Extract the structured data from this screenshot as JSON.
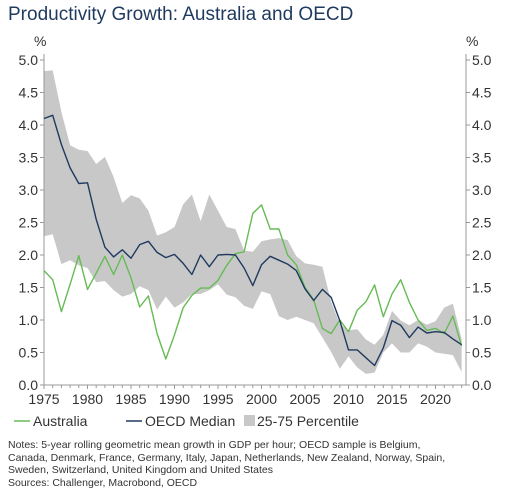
{
  "title": "Productivity Growth: Australia and OECD",
  "chart_data": {
    "type": "line",
    "title": "Productivity Growth: Australia and OECD",
    "ylabel_left": "%",
    "ylabel_right": "%",
    "xlim": [
      1975,
      2023.5
    ],
    "ylim": [
      0,
      5
    ],
    "x_ticks": [
      1975,
      1980,
      1985,
      1990,
      1995,
      2000,
      2005,
      2010,
      2015,
      2020
    ],
    "y_ticks": [
      0.0,
      0.5,
      1.0,
      1.5,
      2.0,
      2.5,
      3.0,
      3.5,
      4.0,
      4.5,
      5.0
    ],
    "y_tick_labels": [
      "0.0",
      "0.5",
      "1.0",
      "1.5",
      "2.0",
      "2.5",
      "3.0",
      "3.5",
      "4.0",
      "4.5",
      "5.0"
    ],
    "grid": false,
    "legend_position": "bottom",
    "x": [
      1975,
      1976,
      1977,
      1978,
      1979,
      1980,
      1981,
      1982,
      1983,
      1984,
      1985,
      1986,
      1987,
      1988,
      1989,
      1990,
      1991,
      1992,
      1993,
      1994,
      1995,
      1996,
      1997,
      1998,
      1999,
      2000,
      2001,
      2002,
      2003,
      2004,
      2005,
      2006,
      2007,
      2008,
      2009,
      2010,
      2011,
      2012,
      2013,
      2014,
      2015,
      2016,
      2017,
      2018,
      2019,
      2020,
      2021,
      2022,
      2023
    ],
    "series": [
      {
        "name": "Australia",
        "style": "line",
        "color": "#66bb55",
        "values": [
          1.76,
          1.62,
          1.13,
          1.55,
          1.99,
          1.47,
          1.72,
          1.98,
          1.7,
          2.0,
          1.65,
          1.2,
          1.37,
          0.79,
          0.4,
          0.77,
          1.19,
          1.38,
          1.49,
          1.49,
          1.61,
          1.84,
          2.02,
          2.05,
          2.64,
          2.77,
          2.4,
          2.4,
          2.0,
          1.85,
          1.5,
          1.31,
          0.87,
          0.79,
          1.0,
          0.82,
          1.15,
          1.28,
          1.54,
          1.05,
          1.4,
          1.62,
          1.27,
          1.0,
          0.84,
          0.87,
          0.79,
          1.06,
          0.6
        ]
      },
      {
        "name": "OECD Median",
        "style": "line",
        "color": "#1f3a5f",
        "values": [
          4.1,
          4.15,
          3.7,
          3.34,
          3.1,
          3.11,
          2.55,
          2.12,
          1.97,
          2.08,
          1.95,
          2.16,
          2.21,
          2.04,
          1.96,
          2.01,
          1.87,
          1.7,
          2.0,
          1.82,
          2.0,
          2.01,
          2.0,
          1.8,
          1.53,
          1.85,
          1.98,
          1.92,
          1.86,
          1.76,
          1.48,
          1.3,
          1.47,
          1.35,
          0.99,
          0.54,
          0.54,
          0.42,
          0.3,
          0.57,
          0.99,
          0.92,
          0.73,
          0.89,
          0.8,
          0.82,
          0.81,
          0.71,
          0.62
        ]
      },
      {
        "name": "25-75 Percentile",
        "style": "band",
        "color": "#c8c8c8",
        "lower": [
          2.29,
          2.32,
          1.86,
          1.92,
          1.84,
          1.8,
          1.58,
          1.6,
          1.46,
          1.36,
          1.4,
          1.52,
          1.46,
          1.16,
          1.36,
          1.19,
          1.27,
          1.4,
          1.4,
          1.46,
          1.55,
          1.39,
          1.35,
          1.22,
          1.17,
          1.44,
          1.4,
          1.06,
          1.0,
          1.05,
          1.0,
          0.95,
          0.73,
          0.51,
          0.25,
          0.44,
          0.27,
          0.17,
          0.19,
          0.5,
          0.64,
          0.5,
          0.5,
          0.64,
          0.59,
          0.5,
          0.48,
          0.46,
          0.2
        ],
        "upper": [
          4.83,
          4.84,
          4.2,
          3.69,
          3.62,
          3.6,
          3.4,
          3.51,
          3.2,
          2.8,
          2.92,
          2.87,
          2.68,
          2.3,
          2.35,
          2.43,
          2.78,
          2.93,
          2.52,
          2.93,
          2.68,
          2.43,
          2.4,
          2.07,
          2.05,
          2.21,
          2.24,
          2.26,
          2.23,
          1.98,
          1.87,
          1.85,
          1.82,
          1.28,
          0.94,
          0.84,
          0.86,
          0.7,
          0.62,
          0.77,
          1.14,
          0.99,
          0.92,
          1.0,
          0.93,
          0.98,
          1.19,
          1.25,
          0.71
        ]
      }
    ]
  },
  "legend": {
    "australia": "Australia",
    "oecd_median": "OECD Median",
    "percentile": "25-75 Percentile"
  },
  "notes": {
    "line1": "Notes: 5-year rolling geometric mean growth in GDP per hour; OECD sample is Belgium,",
    "line2": "Canada, Denmark, France, Germany, Italy, Japan, Netherlands, New Zealand, Norway, Spain,",
    "line3": "Sweden, Switzerland, United Kingdom and United States",
    "line4": "Sources: Challenger, Macrobond, OECD"
  }
}
